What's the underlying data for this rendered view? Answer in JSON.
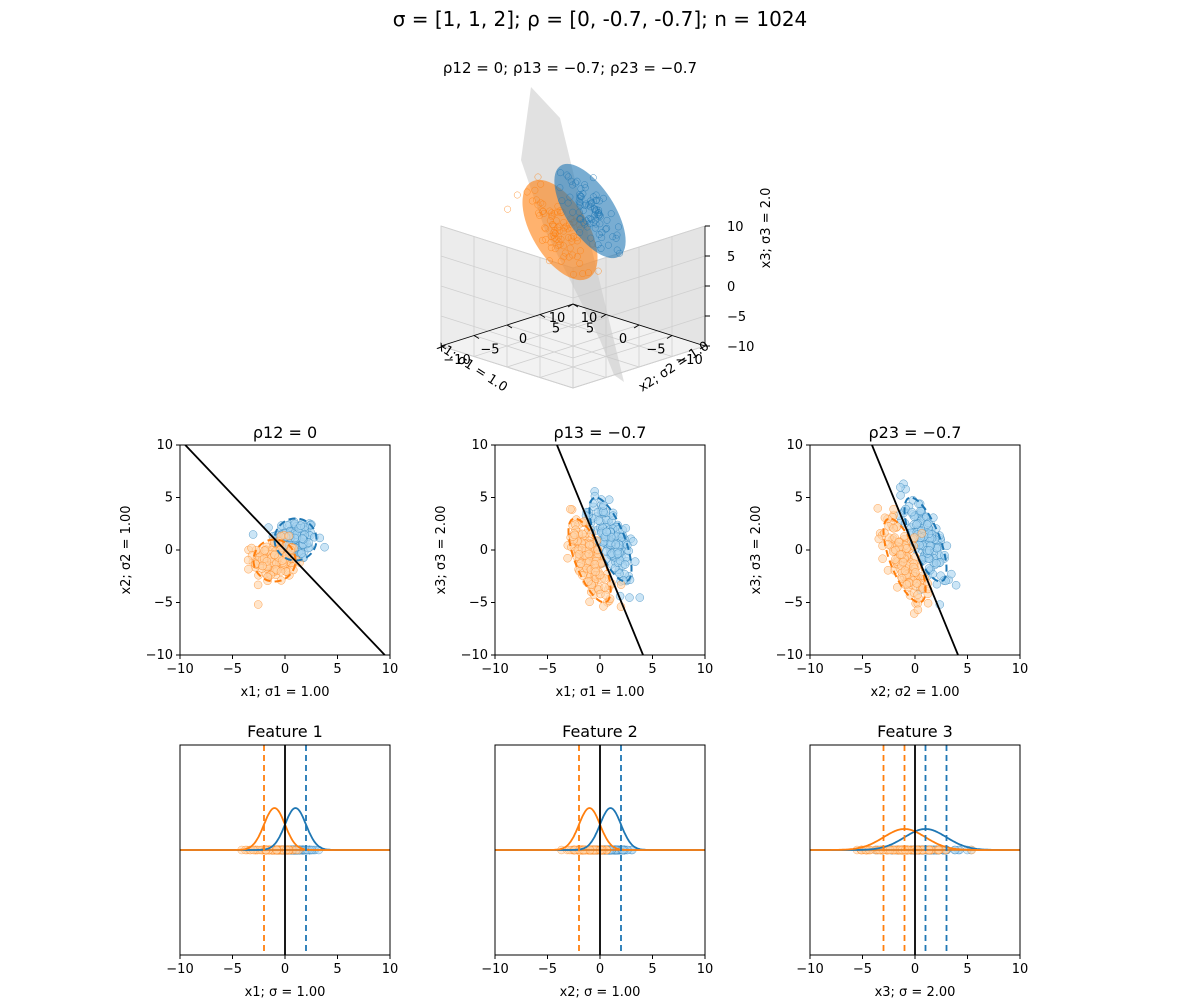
{
  "figure": {
    "suptitle": "σ = [1, 1, 2]; ρ = [0, -0.7, -0.7]; n = 1024",
    "colors": {
      "class_a": "#1f77b4",
      "class_b": "#ff7f0e",
      "boundary": "#000000",
      "plane": "#c8c8c8"
    }
  },
  "chart_data": [
    {
      "type": "scatter3d",
      "title": "ρ12 = 0;  ρ13 = −0.7;  ρ23 = −0.7",
      "xlabel": "x1;  σ1 = 1.0",
      "ylabel": "x2;  σ2 = 1.0",
      "zlabel": "x3;  σ3 = 2.0",
      "xlim": [
        -10,
        10
      ],
      "ylim": [
        -10,
        10
      ],
      "zlim": [
        -10,
        10
      ],
      "xticks": [
        "−10",
        "−5",
        "0",
        "5",
        "10"
      ],
      "yticks": [
        "−10",
        "−5",
        "0",
        "5",
        "10"
      ],
      "zticks": [
        "−10",
        "−5",
        "0",
        "5",
        "10"
      ],
      "series": [
        {
          "mean": [
            1,
            1,
            1
          ],
          "color": "#1f77b4"
        },
        {
          "mean": [
            -1,
            -1,
            -1
          ],
          "color": "#ff7f0e"
        }
      ]
    },
    {
      "type": "scatter",
      "title": "ρ12 = 0",
      "xlabel": "x1;  σ1 = 1.00",
      "ylabel": "x2;  σ2 = 1.00",
      "xlim": [
        -10,
        10
      ],
      "ylim": [
        -10,
        10
      ],
      "xticks": [
        "−10",
        "−5",
        "0",
        "5",
        "10"
      ],
      "yticks": [
        "−10",
        "−5",
        "0",
        "5",
        "10"
      ],
      "sx": 1,
      "sy": 1,
      "rho": 0,
      "means": [
        [
          1,
          1
        ],
        [
          -1,
          -1
        ]
      ],
      "boundary": [
        [
          -9.5,
          10
        ],
        [
          9.5,
          -10
        ]
      ]
    },
    {
      "type": "scatter",
      "title": "ρ13 = −0.7",
      "xlabel": "x1;  σ1 = 1.00",
      "ylabel": "x3;  σ3 = 2.00",
      "xlim": [
        -10,
        10
      ],
      "ylim": [
        -10,
        10
      ],
      "xticks": [
        "−10",
        "−5",
        "0",
        "5",
        "10"
      ],
      "yticks": [
        "−10",
        "−5",
        "0",
        "5",
        "10"
      ],
      "sx": 1,
      "sy": 2,
      "rho": -0.7,
      "means": [
        [
          1,
          1
        ],
        [
          -1,
          -1
        ]
      ],
      "boundary": [
        [
          -4.1,
          10
        ],
        [
          4.1,
          -10
        ]
      ]
    },
    {
      "type": "scatter",
      "title": "ρ23 = −0.7",
      "xlabel": "x2;  σ2 = 1.00",
      "ylabel": "x3;  σ3 = 2.00",
      "xlim": [
        -10,
        10
      ],
      "ylim": [
        -10,
        10
      ],
      "xticks": [
        "−10",
        "−5",
        "0",
        "5",
        "10"
      ],
      "yticks": [
        "−10",
        "−5",
        "0",
        "5",
        "10"
      ],
      "sx": 1,
      "sy": 2,
      "rho": -0.7,
      "means": [
        [
          1,
          1
        ],
        [
          -1,
          -1
        ]
      ],
      "boundary": [
        [
          -4.1,
          10
        ],
        [
          4.1,
          -10
        ]
      ]
    },
    {
      "type": "density",
      "title": "Feature 1",
      "xlabel": "x1; σ = 1.00",
      "xlim": [
        -10,
        10
      ],
      "xticks": [
        "−10",
        "−5",
        "0",
        "5",
        "10"
      ],
      "sigma": 1,
      "means": [
        1,
        -1
      ],
      "dashed": [
        2,
        -2
      ]
    },
    {
      "type": "density",
      "title": "Feature 2",
      "xlabel": "x2; σ = 1.00",
      "xlim": [
        -10,
        10
      ],
      "xticks": [
        "−10",
        "−5",
        "0",
        "5",
        "10"
      ],
      "sigma": 1,
      "means": [
        1,
        -1
      ],
      "dashed": [
        2,
        -2
      ]
    },
    {
      "type": "density",
      "title": "Feature 3",
      "xlabel": "x3; σ = 2.00",
      "xlim": [
        -10,
        10
      ],
      "xticks": [
        "−10",
        "−5",
        "0",
        "5",
        "10"
      ],
      "sigma": 2,
      "means": [
        1,
        -1
      ],
      "dashed": [
        3,
        -1,
        1,
        -3
      ]
    }
  ]
}
